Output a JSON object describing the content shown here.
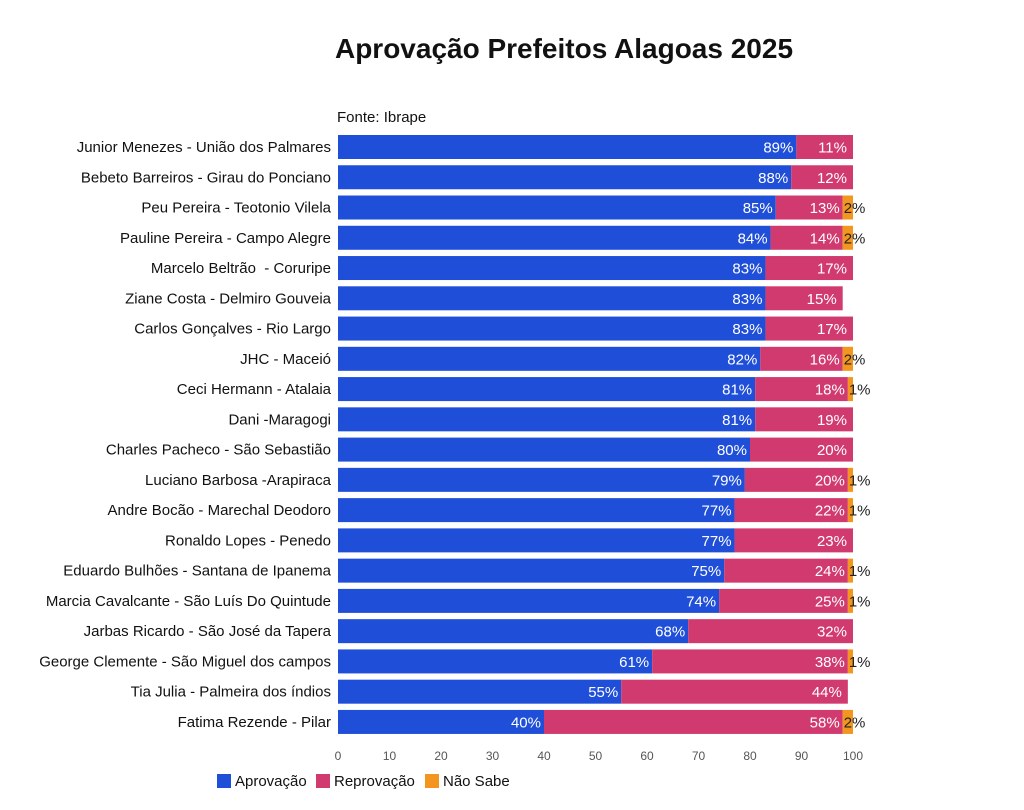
{
  "chart_data": {
    "type": "bar",
    "orientation": "horizontal",
    "stacked": true,
    "title": "Aprovação Prefeitos Alagoas 2025",
    "source": "Fonte: Ibrape",
    "categories": [
      "Junior Menezes - União dos Palmares",
      "Bebeto Barreiros - Girau do Ponciano",
      "Peu Pereira - Teotonio Vilela",
      "Pauline Pereira - Campo Alegre",
      "Marcelo Beltrão  - Coruripe",
      "Ziane Costa - Delmiro Gouveia",
      "Carlos Gonçalves - Rio Largo",
      "JHC - Maceió",
      "Ceci Hermann - Atalaia",
      "Dani -Maragogi",
      "Charles Pacheco - São Sebastião",
      "Luciano Barbosa -Arapiraca",
      "Andre Bocão - Marechal Deodoro",
      "Ronaldo Lopes - Penedo",
      "Eduardo Bulhões - Santana de Ipanema",
      "Marcia Cavalcante - São Luís Do Quintude",
      "Jarbas Ricardo - São José da Tapera",
      "George Clemente - São Miguel dos campos",
      "Tia Julia - Palmeira dos índios",
      "Fatima Rezende - Pilar"
    ],
    "series": [
      {
        "name": "Aprovação",
        "color": "#1f4fd8",
        "label_color": "#ffffff",
        "values": [
          89,
          88,
          85,
          84,
          83,
          83,
          83,
          82,
          81,
          81,
          80,
          79,
          77,
          77,
          75,
          74,
          68,
          61,
          55,
          40
        ]
      },
      {
        "name": "Reprovação",
        "color": "#d13a6e",
        "label_color": "#ffffff",
        "values": [
          11,
          12,
          13,
          14,
          17,
          15,
          17,
          16,
          18,
          19,
          20,
          20,
          22,
          23,
          24,
          25,
          32,
          38,
          44,
          58
        ]
      },
      {
        "name": "Não Sabe",
        "color": "#f2961f",
        "label_color": "#222222",
        "values": [
          null,
          null,
          2,
          2,
          null,
          null,
          null,
          2,
          1,
          null,
          null,
          1,
          1,
          null,
          1,
          1,
          null,
          1,
          null,
          2
        ]
      }
    ],
    "xlim": [
      0,
      100
    ],
    "xticks": [
      "0",
      "10",
      "20",
      "30",
      "40",
      "50",
      "60",
      "70",
      "80",
      "90",
      "100"
    ],
    "legend": "bottom-left",
    "grid": false
  }
}
